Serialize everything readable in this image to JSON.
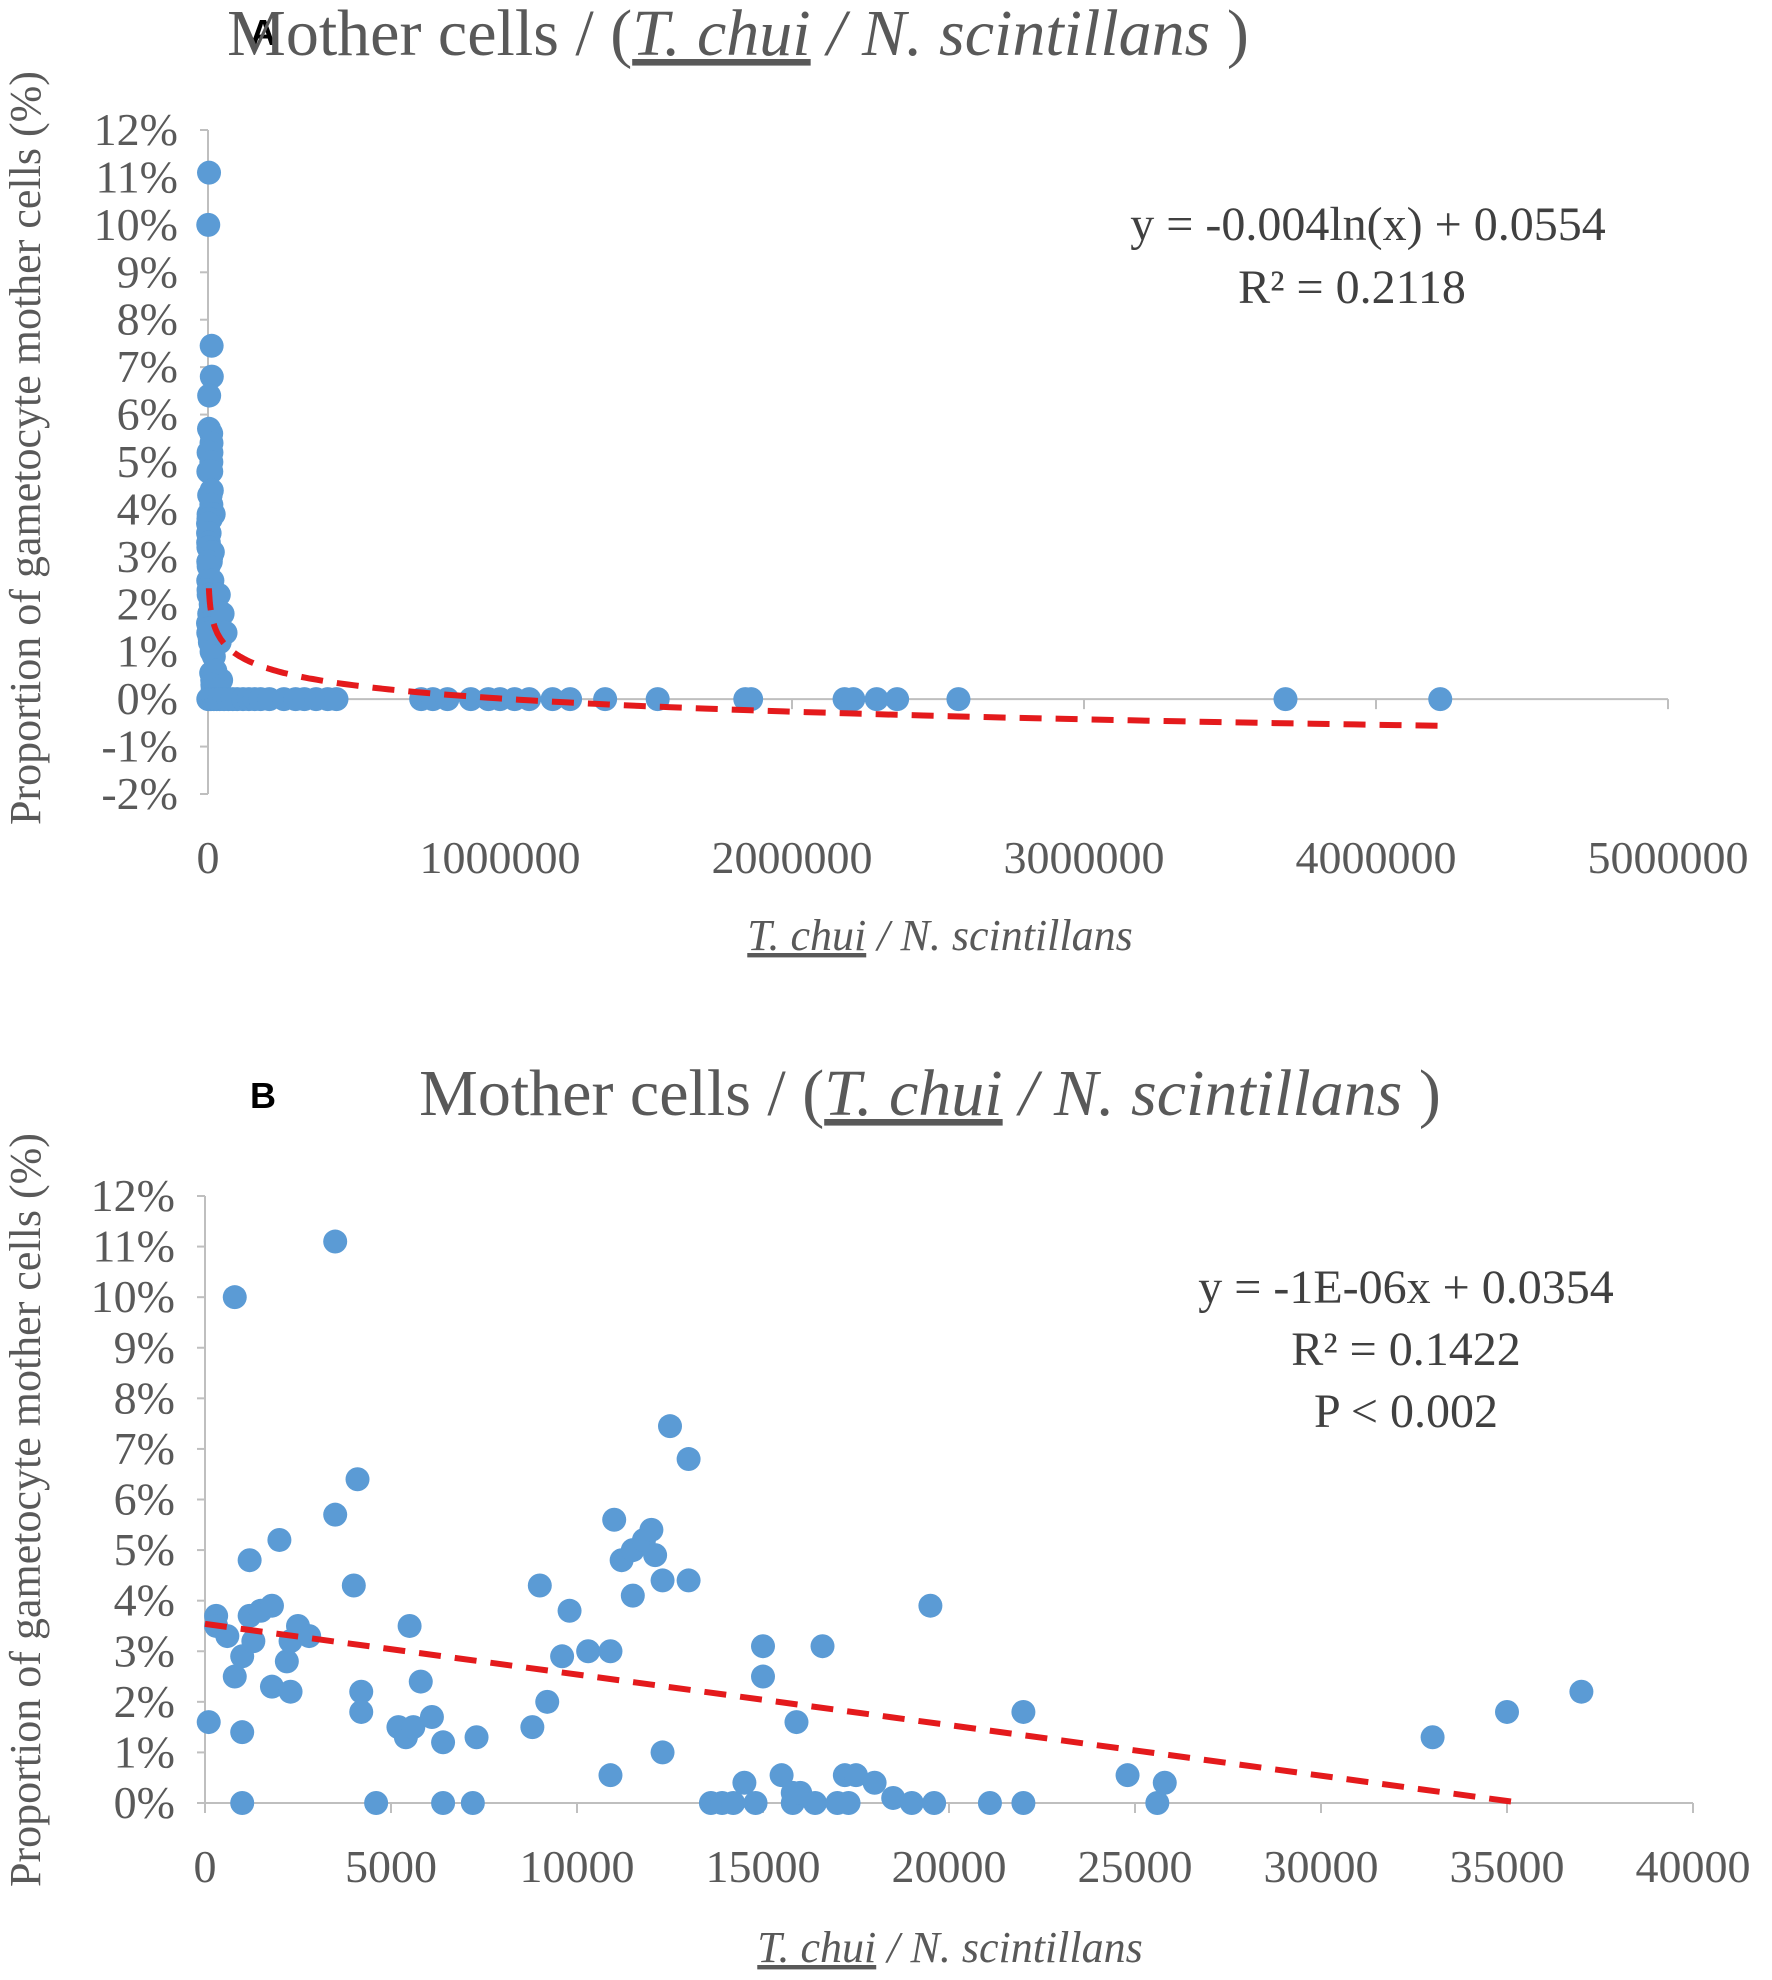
{
  "colors": {
    "point": "#5b9bd5",
    "trend": "#e41a1c",
    "axis": "#bfbfbf",
    "text": "#595959"
  },
  "chart_data": [
    {
      "panel": "A",
      "type": "scatter",
      "title": {
        "prefix": "Mother cells / (",
        "species_a": "T. chui",
        "separator": " / ",
        "species_b": "N. scintillans",
        "suffix": " )"
      },
      "xlabel": {
        "species_a": "T. chui",
        "separator": " / ",
        "species_b": "N. scintillans"
      },
      "ylabel": "Proportion of gametocyte mother cells (%)",
      "xlim": [
        0,
        5000000
      ],
      "ylim": [
        -0.02,
        0.12
      ],
      "x_ticks": [
        0,
        1000000,
        2000000,
        3000000,
        4000000,
        5000000
      ],
      "x_tick_labels": [
        "0",
        "1000000",
        "2000000",
        "3000000",
        "4000000",
        "5000000"
      ],
      "y_ticks": [
        -0.02,
        -0.01,
        0,
        0.01,
        0.02,
        0.03,
        0.04,
        0.05,
        0.06,
        0.07,
        0.08,
        0.09,
        0.1,
        0.11,
        0.12
      ],
      "y_tick_labels": [
        "-2%",
        "-1%",
        "0%",
        "1%",
        "2%",
        "3%",
        "4%",
        "5%",
        "6%",
        "7%",
        "8%",
        "9%",
        "10%",
        "11%",
        "12%"
      ],
      "trendline": {
        "type": "logarithmic",
        "a": -0.004,
        "b": 0.0554,
        "x_range": [
          3000,
          4220000
        ]
      },
      "annotations": [
        "y = -0.004ln(x) + 0.0554",
        "R² = 0.2118"
      ],
      "points": [
        [
          3500,
          0.111
        ],
        [
          900,
          0.1
        ],
        [
          12500,
          0.0745
        ],
        [
          13000,
          0.068
        ],
        [
          4000,
          0.064
        ],
        [
          3500,
          0.057
        ],
        [
          11000,
          0.056
        ],
        [
          12000,
          0.054
        ],
        [
          11800,
          0.052
        ],
        [
          2000,
          0.052
        ],
        [
          11500,
          0.05
        ],
        [
          1200,
          0.048
        ],
        [
          11200,
          0.048
        ],
        [
          9000,
          0.043
        ],
        [
          4000,
          0.043
        ],
        [
          13000,
          0.044
        ],
        [
          12300,
          0.044
        ],
        [
          11500,
          0.041
        ],
        [
          2000,
          0.039
        ],
        [
          19500,
          0.039
        ],
        [
          9800,
          0.038
        ],
        [
          1500,
          0.038
        ],
        [
          1000,
          0.037
        ],
        [
          300,
          0.037
        ],
        [
          2500,
          0.035
        ],
        [
          5500,
          0.035
        ],
        [
          300,
          0.035
        ],
        [
          600,
          0.033
        ],
        [
          2800,
          0.033
        ],
        [
          1300,
          0.032
        ],
        [
          2300,
          0.032
        ],
        [
          16500,
          0.031
        ],
        [
          10500,
          0.03
        ],
        [
          11000,
          0.03
        ],
        [
          9600,
          0.029
        ],
        [
          15000,
          0.031
        ],
        [
          1000,
          0.029
        ],
        [
          2200,
          0.028
        ],
        [
          800,
          0.025
        ],
        [
          5800,
          0.024
        ],
        [
          15000,
          0.025
        ],
        [
          1800,
          0.023
        ],
        [
          2300,
          0.022
        ],
        [
          4200,
          0.022
        ],
        [
          37000,
          0.022
        ],
        [
          9200,
          0.02
        ],
        [
          4200,
          0.018
        ],
        [
          22000,
          0.018
        ],
        [
          35000,
          0.018
        ],
        [
          6100,
          0.017
        ],
        [
          100,
          0.016
        ],
        [
          5200,
          0.015
        ],
        [
          5600,
          0.015
        ],
        [
          8800,
          0.015
        ],
        [
          15800,
          0.015
        ],
        [
          5400,
          0.013
        ],
        [
          7300,
          0.013
        ],
        [
          1000,
          0.014
        ],
        [
          33000,
          0.013
        ],
        [
          6400,
          0.012
        ],
        [
          12300,
          0.01
        ],
        [
          10900,
          0.0055
        ],
        [
          15500,
          0.0055
        ],
        [
          17200,
          0.0055
        ],
        [
          17500,
          0.0055
        ],
        [
          24800,
          0.0055
        ],
        [
          14500,
          0.004
        ],
        [
          18000,
          0.004
        ],
        [
          25800,
          0.004
        ],
        [
          16000,
          0.002
        ],
        [
          18500,
          0.001
        ],
        [
          30000,
          0.022
        ],
        [
          50000,
          0.018
        ],
        [
          60000,
          0.014
        ],
        [
          40000,
          0.012
        ],
        [
          20000,
          0.009
        ],
        [
          25000,
          0.006
        ],
        [
          45000,
          0.004
        ],
        [
          15000,
          0.003
        ],
        [
          30000,
          0.002
        ],
        [
          1000,
          0
        ],
        [
          5000,
          0
        ],
        [
          10000,
          0
        ],
        [
          20000,
          0
        ],
        [
          30000,
          0
        ],
        [
          40000,
          0
        ],
        [
          55000,
          0
        ],
        [
          70000,
          0
        ],
        [
          85000,
          0
        ],
        [
          100000,
          0
        ],
        [
          120000,
          0
        ],
        [
          140000,
          0
        ],
        [
          160000,
          0
        ],
        [
          180000,
          0
        ],
        [
          210000,
          0
        ],
        [
          260000,
          0
        ],
        [
          300000,
          0
        ],
        [
          330000,
          0
        ],
        [
          370000,
          0
        ],
        [
          410000,
          0
        ],
        [
          440000,
          0
        ],
        [
          730000,
          0
        ],
        [
          770000,
          0
        ],
        [
          820000,
          0
        ],
        [
          900000,
          0
        ],
        [
          960000,
          0
        ],
        [
          1000000,
          0
        ],
        [
          1050000,
          0
        ],
        [
          1100000,
          0
        ],
        [
          1180000,
          0
        ],
        [
          1240000,
          0
        ],
        [
          1360000,
          0
        ],
        [
          1540000,
          0
        ],
        [
          1840000,
          0
        ],
        [
          1860000,
          0
        ],
        [
          2180000,
          0
        ],
        [
          2210000,
          0
        ],
        [
          2290000,
          0
        ],
        [
          2360000,
          0
        ],
        [
          2570000,
          0
        ],
        [
          3690000,
          0
        ],
        [
          4220000,
          0
        ]
      ]
    },
    {
      "panel": "B",
      "type": "scatter",
      "title": {
        "prefix": "Mother cells /  (",
        "species_a": "T. chui",
        "separator": " / ",
        "species_b": "N. scintillans",
        "suffix": " )"
      },
      "xlabel": {
        "species_a": "T. chui",
        "separator": " / ",
        "species_b": "N. scintillans"
      },
      "ylabel": "Proportion of gametocyte mother cells (%)",
      "xlim": [
        0,
        40000
      ],
      "ylim": [
        0,
        0.12
      ],
      "x_ticks": [
        0,
        5000,
        10000,
        15000,
        20000,
        25000,
        30000,
        35000,
        40000
      ],
      "x_tick_labels": [
        "0",
        "5000",
        "10000",
        "15000",
        "20000",
        "25000",
        "30000",
        "35000",
        "40000"
      ],
      "y_ticks": [
        0,
        0.01,
        0.02,
        0.03,
        0.04,
        0.05,
        0.06,
        0.07,
        0.08,
        0.09,
        0.1,
        0.11,
        0.12
      ],
      "y_tick_labels": [
        "0%",
        "1%",
        "2%",
        "3%",
        "4%",
        "5%",
        "6%",
        "7%",
        "8%",
        "9%",
        "10%",
        "11%",
        "12%"
      ],
      "trendline": {
        "type": "linear",
        "slope": -1e-06,
        "intercept": 0.0354,
        "x_range": [
          0,
          35400
        ]
      },
      "annotations": [
        "y = -1E-06x + 0.0354",
        "R² = 0.1422",
        "P < 0.002"
      ],
      "points": [
        [
          100,
          0.016
        ],
        [
          300,
          0.037
        ],
        [
          300,
          0.035
        ],
        [
          600,
          0.033
        ],
        [
          800,
          0.1
        ],
        [
          800,
          0.025
        ],
        [
          1000,
          0.029
        ],
        [
          1000,
          0.014
        ],
        [
          1000,
          0
        ],
        [
          1200,
          0.048
        ],
        [
          1200,
          0.037
        ],
        [
          1300,
          0.032
        ],
        [
          1500,
          0.038
        ],
        [
          1800,
          0.023
        ],
        [
          1800,
          0.039
        ],
        [
          2000,
          0.052
        ],
        [
          2200,
          0.028
        ],
        [
          2300,
          0.022
        ],
        [
          2300,
          0.032
        ],
        [
          2500,
          0.035
        ],
        [
          2800,
          0.033
        ],
        [
          3500,
          0.057
        ],
        [
          3500,
          0.111
        ],
        [
          4000,
          0.043
        ],
        [
          4100,
          0.064
        ],
        [
          4200,
          0.022
        ],
        [
          4200,
          0.018
        ],
        [
          4600,
          0
        ],
        [
          5200,
          0.015
        ],
        [
          5400,
          0.013
        ],
        [
          5500,
          0.035
        ],
        [
          5600,
          0.015
        ],
        [
          5800,
          0.024
        ],
        [
          6100,
          0.017
        ],
        [
          6400,
          0.012
        ],
        [
          6400,
          0
        ],
        [
          7200,
          0
        ],
        [
          7300,
          0.013
        ],
        [
          8800,
          0.015
        ],
        [
          9000,
          0.043
        ],
        [
          9200,
          0.02
        ],
        [
          9600,
          0.029
        ],
        [
          9800,
          0.038
        ],
        [
          10300,
          0.03
        ],
        [
          10900,
          0.0055
        ],
        [
          10900,
          0.03
        ],
        [
          11000,
          0.056
        ],
        [
          11200,
          0.048
        ],
        [
          11500,
          0.05
        ],
        [
          11500,
          0.041
        ],
        [
          11800,
          0.052
        ],
        [
          12000,
          0.054
        ],
        [
          12100,
          0.049
        ],
        [
          12300,
          0.044
        ],
        [
          12300,
          0.01
        ],
        [
          12500,
          0.0745
        ],
        [
          13000,
          0.068
        ],
        [
          13000,
          0.044
        ],
        [
          13600,
          0
        ],
        [
          13900,
          0
        ],
        [
          14200,
          0
        ],
        [
          14500,
          0.004
        ],
        [
          14800,
          0
        ],
        [
          15000,
          0.031
        ],
        [
          15000,
          0.025
        ],
        [
          15500,
          0.0055
        ],
        [
          15800,
          0.002
        ],
        [
          15800,
          0
        ],
        [
          15900,
          0.016
        ],
        [
          16000,
          0.002
        ],
        [
          16400,
          0
        ],
        [
          16600,
          0.031
        ],
        [
          17000,
          0
        ],
        [
          17200,
          0.0055
        ],
        [
          17300,
          0
        ],
        [
          17500,
          0.0055
        ],
        [
          18000,
          0.004
        ],
        [
          18500,
          0.001
        ],
        [
          19000,
          0
        ],
        [
          19500,
          0.039
        ],
        [
          19600,
          0
        ],
        [
          21100,
          0
        ],
        [
          22000,
          0.018
        ],
        [
          22000,
          0
        ],
        [
          24800,
          0.0055
        ],
        [
          25600,
          0
        ],
        [
          25800,
          0.004
        ],
        [
          33000,
          0.013
        ],
        [
          35000,
          0.018
        ],
        [
          37000,
          0.022
        ]
      ]
    }
  ]
}
